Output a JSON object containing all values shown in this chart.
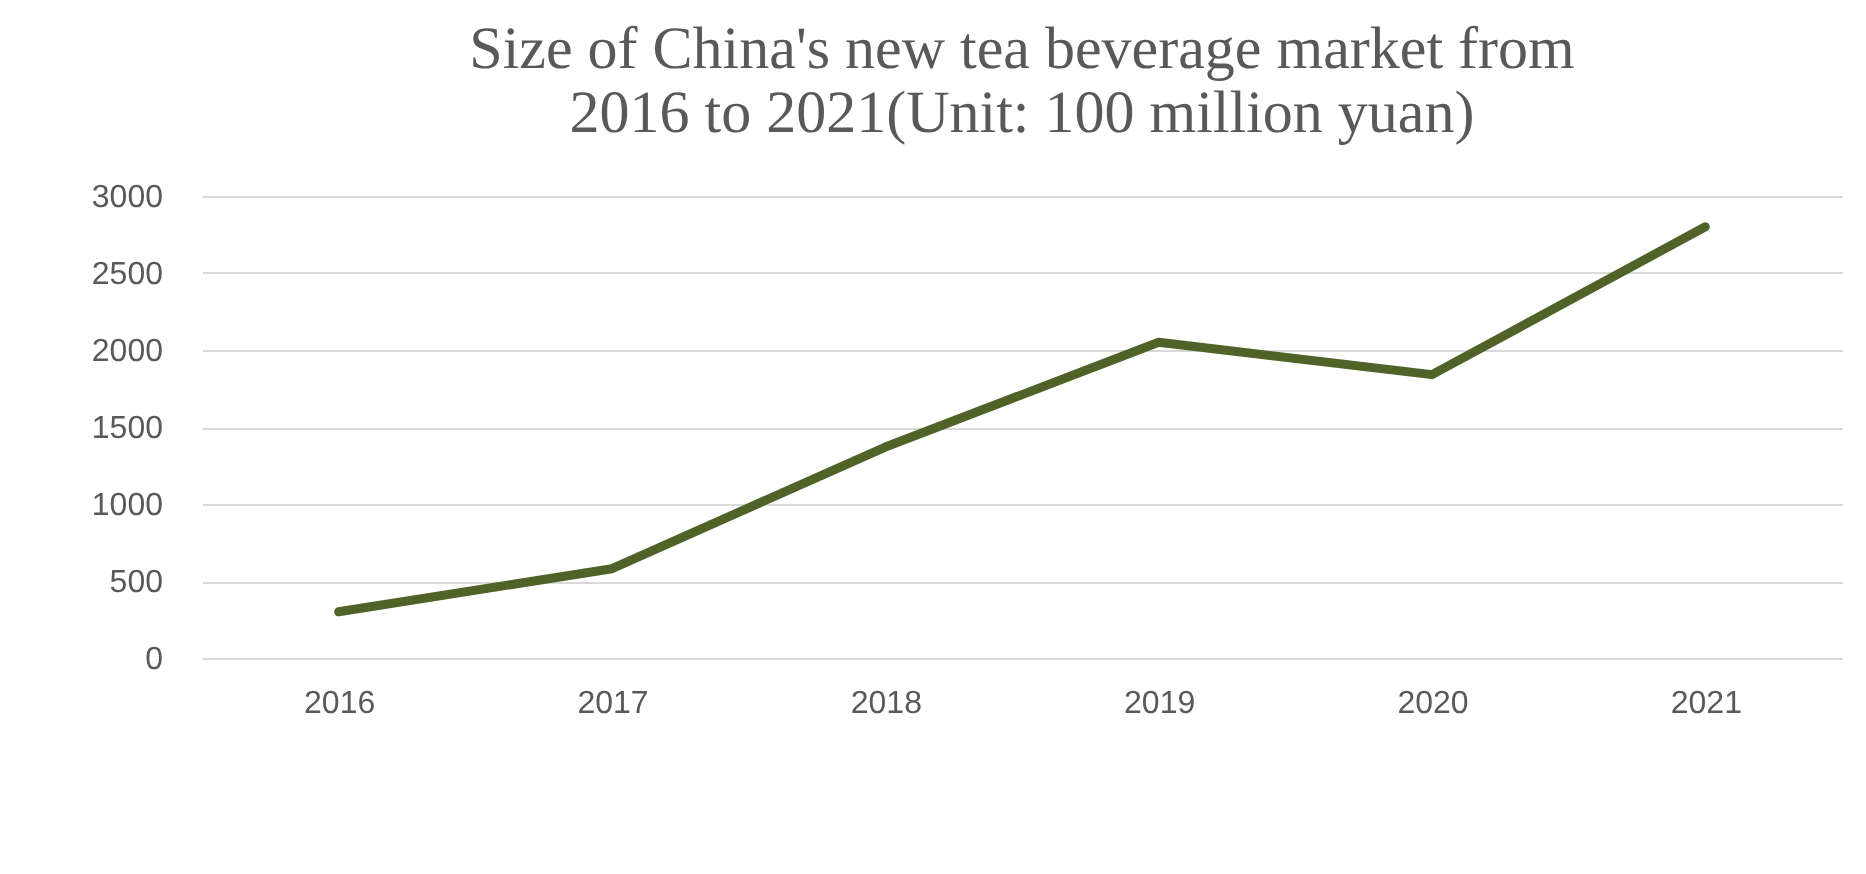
{
  "chart_data": {
    "type": "line",
    "title": [
      "Size of China's new tea beverage market from",
      "2016 to 2021(Unit: 100 million yuan)"
    ],
    "categories": [
      "2016",
      "2017",
      "2018",
      "2019",
      "2020",
      "2021"
    ],
    "series": [
      {
        "color": "#4f6228",
        "values": [
          300,
          580,
          1370,
          2050,
          1840,
          2800
        ]
      }
    ],
    "ylim": [
      0,
      3000
    ],
    "yticks": [
      0,
      500,
      1000,
      1500,
      2000,
      2500,
      3000
    ],
    "grid": "y",
    "legend": false,
    "marker": "none",
    "line_style": "solid"
  }
}
